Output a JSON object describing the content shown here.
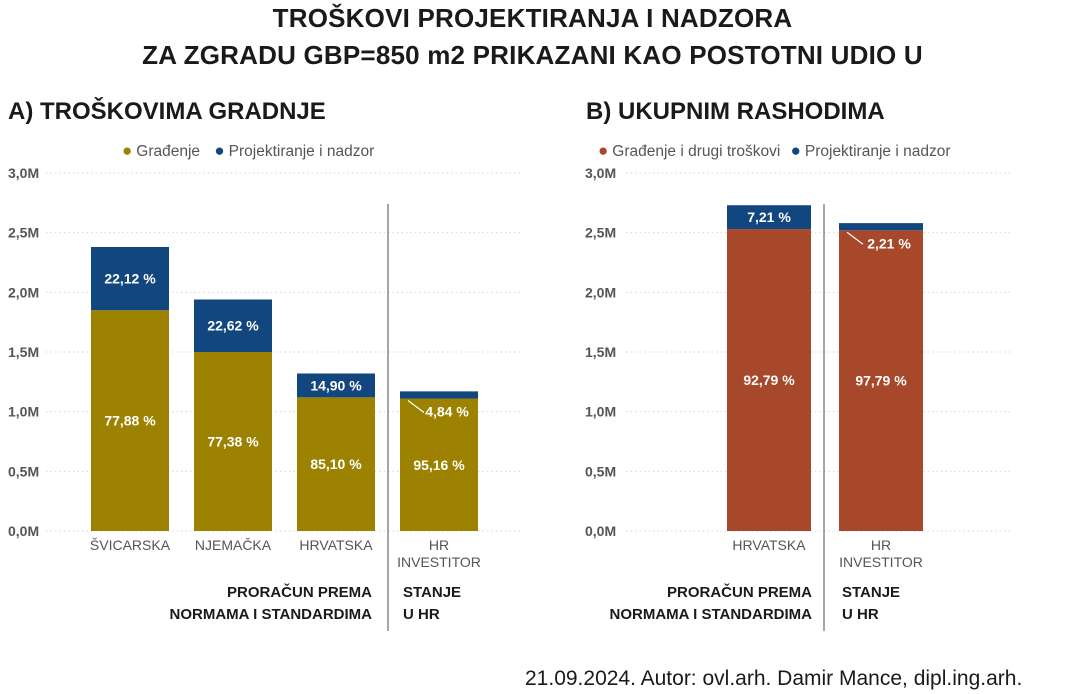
{
  "title_line1": "TROŠKOVI PROJEKTIRANJA I NADZORA",
  "title_line2": "ZA ZGRADU GBP=850 m2 PRIKAZANI KAO POSTOTNI UDIO U",
  "footer": "21.09.2024. Autor: ovl.arh. Damir Mance, dipl.ing.arh.",
  "colors": {
    "gradjenje": "#9C8200",
    "projektiranje": "#12467E",
    "gradjenje_drugi": "#A8482A",
    "text": "#1a1a1a",
    "axis_text": "#555555"
  },
  "chart_data": [
    {
      "type": "bar",
      "stacked": true,
      "title": "A) TROŠKOVIMA GRADNJE",
      "legend_position": "top-center",
      "grid": true,
      "ylim": [
        0,
        3000000
      ],
      "y_ticks": [
        "0,0M",
        "0,5M",
        "1,0M",
        "1,5M",
        "2,0M",
        "2,5M",
        "3,0M"
      ],
      "categories": [
        "ŠVICARSKA",
        "NJEMAČKA",
        "HRVATSKA",
        "HR INVESTITOR"
      ],
      "series": [
        {
          "name": "Građenje",
          "color": "#9C8200",
          "values": [
            1850000,
            1500000,
            1120000,
            1110000
          ],
          "labels": [
            "77,88 %",
            "77,38 %",
            "85,10 %",
            "95,16 %"
          ]
        },
        {
          "name": "Projektiranje i nadzor",
          "color": "#12467E",
          "values": [
            530000,
            440000,
            200000,
            60000
          ],
          "labels": [
            "22,12 %",
            "22,62 %",
            "14,90 %",
            "4,84 %"
          ]
        }
      ],
      "group_labels": [
        {
          "line1": "PRORAČUN PREMA",
          "line2": "NORMAMA I STANDARDIMA"
        },
        {
          "line1": "STANJE",
          "line2": "U HR"
        }
      ]
    },
    {
      "type": "bar",
      "stacked": true,
      "title": "B) UKUPNIM RASHODIMA",
      "legend_position": "top-center",
      "grid": true,
      "ylim": [
        0,
        3000000
      ],
      "y_ticks": [
        "0,0M",
        "0,5M",
        "1,0M",
        "1,5M",
        "2,0M",
        "2,5M",
        "3,0M"
      ],
      "categories": [
        "HRVATSKA",
        "HR INVESTITOR"
      ],
      "series": [
        {
          "name": "Građenje i drugi troškovi",
          "color": "#A8482A",
          "values": [
            2530000,
            2520000
          ],
          "labels": [
            "92,79 %",
            "97,79 %"
          ]
        },
        {
          "name": "Projektiranje i nadzor",
          "color": "#12467E",
          "values": [
            200000,
            60000
          ],
          "labels": [
            "7,21 %",
            "2,21 %"
          ]
        }
      ],
      "group_labels": [
        {
          "line1": "PRORAČUN PREMA",
          "line2": "NORMAMA I STANDARDIMA"
        },
        {
          "line1": "STANJE",
          "line2": "U HR"
        }
      ]
    }
  ]
}
